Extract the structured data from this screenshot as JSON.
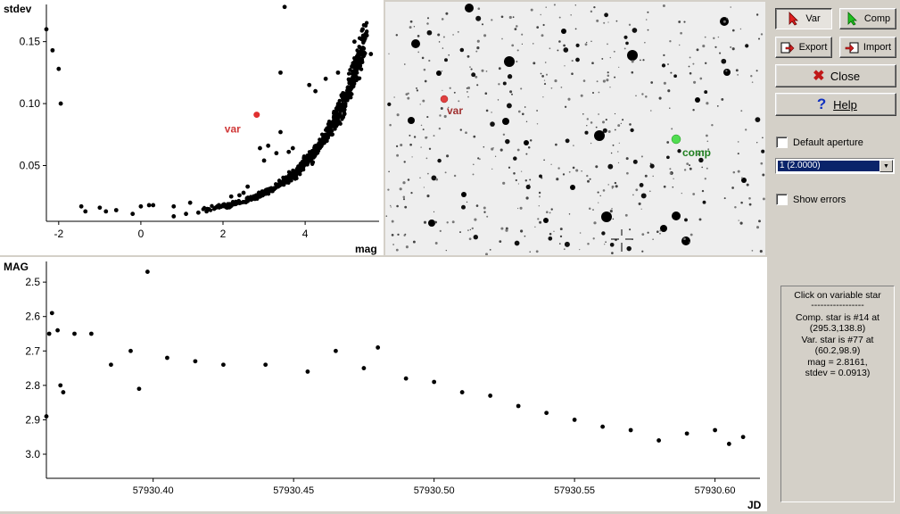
{
  "scatter": {
    "y_label": "stdev",
    "x_label": "mag",
    "x_ticks": [
      "-2",
      "0",
      "2",
      "4"
    ],
    "y_ticks": [
      "0.15",
      "0.10",
      "0.05"
    ],
    "var_label": "var",
    "var_point": {
      "mag": 2.82,
      "stdev": 0.091
    },
    "colors": {
      "point": "#000000",
      "var": "#e03030"
    }
  },
  "image": {
    "var_label": "var",
    "comp_label": "comp",
    "colors": {
      "var": "#e04040",
      "comp": "#40c040",
      "var_text": "#a03030",
      "comp_text": "#208020"
    }
  },
  "lightcurve": {
    "y_label": "MAG",
    "x_label": "JD",
    "x_ticks": [
      "57930.40",
      "57930.45",
      "57930.50",
      "57930.55",
      "57930.60"
    ],
    "y_ticks": [
      "2.5",
      "2.6",
      "2.7",
      "2.8",
      "2.9",
      "3.0"
    ]
  },
  "toolbar": {
    "var_label": "Var",
    "comp_label": "Comp",
    "export_label": "Export",
    "import_label": "Import",
    "close_label": "Close",
    "help_label": "Help"
  },
  "options": {
    "default_aperture_label": "Default aperture",
    "aperture_value": "1 (2.0000)",
    "show_errors_label": "Show errors"
  },
  "info": {
    "line1": "Click on variable star",
    "line2": "-----------------",
    "line3": "Comp. star is #14 at",
    "line4": "(295.3,138.8)",
    "line5": "Var. star is #77 at",
    "line6": "(60.2,98.9)",
    "line7": "mag = 2.8161,",
    "line8": "stdev = 0.0913)"
  },
  "chart_data": [
    {
      "type": "scatter",
      "title": "",
      "xlabel": "mag",
      "ylabel": "stdev",
      "xlim": [
        -2.3,
        5.8
      ],
      "ylim": [
        0.005,
        0.18
      ],
      "series": [
        {
          "values": [
            [
              -2.3,
              0.16
            ],
            [
              -2.15,
              0.143
            ],
            [
              -2.0,
              0.128
            ],
            [
              -1.95,
              0.1
            ],
            [
              -1.45,
              0.017
            ],
            [
              -1.35,
              0.013
            ],
            [
              -1.0,
              0.016
            ],
            [
              -0.85,
              0.013
            ],
            [
              -0.6,
              0.014
            ],
            [
              -0.2,
              0.011
            ],
            [
              0.0,
              0.017
            ],
            [
              0.2,
              0.018
            ],
            [
              0.3,
              0.018
            ],
            [
              0.8,
              0.017
            ],
            [
              0.8,
              0.009
            ],
            [
              1.1,
              0.011
            ],
            [
              1.2,
              0.02
            ],
            [
              1.4,
              0.012
            ],
            [
              1.6,
              0.013
            ],
            [
              1.9,
              0.018
            ],
            [
              2.1,
              0.016
            ],
            [
              2.2,
              0.025
            ],
            [
              2.4,
              0.026
            ],
            [
              2.5,
              0.028
            ],
            [
              2.6,
              0.033
            ],
            [
              2.9,
              0.064
            ],
            [
              3.0,
              0.054
            ],
            [
              3.1,
              0.066
            ],
            [
              3.5,
              0.178
            ],
            [
              3.4,
              0.125
            ],
            [
              3.4,
              0.077
            ],
            [
              3.3,
              0.06
            ],
            [
              3.6,
              0.061
            ],
            [
              3.7,
              0.064
            ],
            [
              4.1,
              0.115
            ],
            [
              4.25,
              0.11
            ],
            [
              4.5,
              0.12
            ],
            [
              4.8,
              0.125
            ],
            [
              5.0,
              0.107
            ],
            [
              5.2,
              0.15
            ],
            [
              5.4,
              0.16
            ],
            [
              5.5,
              0.155
            ],
            [
              5.6,
              0.14
            ]
          ]
        }
      ]
    },
    {
      "type": "scatter",
      "title": "",
      "xlabel": "JD",
      "ylabel": "MAG",
      "xlim": [
        57930.362,
        57930.616
      ],
      "ylim": [
        2.44,
        3.07
      ],
      "series": [
        {
          "values": [
            [
              57930.362,
              2.89
            ],
            [
              57930.363,
              2.65
            ],
            [
              57930.364,
              2.59
            ],
            [
              57930.366,
              2.64
            ],
            [
              57930.367,
              2.8
            ],
            [
              57930.368,
              2.82
            ],
            [
              57930.372,
              2.65
            ],
            [
              57930.378,
              2.65
            ],
            [
              57930.385,
              2.74
            ],
            [
              57930.392,
              2.7
            ],
            [
              57930.395,
              2.81
            ],
            [
              57930.398,
              2.47
            ],
            [
              57930.405,
              2.72
            ],
            [
              57930.415,
              2.73
            ],
            [
              57930.425,
              2.74
            ],
            [
              57930.44,
              2.74
            ],
            [
              57930.455,
              2.76
            ],
            [
              57930.465,
              2.7
            ],
            [
              57930.475,
              2.75
            ],
            [
              57930.48,
              2.69
            ],
            [
              57930.49,
              2.78
            ],
            [
              57930.5,
              2.79
            ],
            [
              57930.51,
              2.82
            ],
            [
              57930.52,
              2.83
            ],
            [
              57930.53,
              2.86
            ],
            [
              57930.54,
              2.88
            ],
            [
              57930.55,
              2.9
            ],
            [
              57930.56,
              2.92
            ],
            [
              57930.57,
              2.93
            ],
            [
              57930.58,
              2.96
            ],
            [
              57930.59,
              2.94
            ],
            [
              57930.6,
              2.93
            ],
            [
              57930.605,
              2.97
            ],
            [
              57930.61,
              2.95
            ]
          ]
        }
      ]
    }
  ]
}
